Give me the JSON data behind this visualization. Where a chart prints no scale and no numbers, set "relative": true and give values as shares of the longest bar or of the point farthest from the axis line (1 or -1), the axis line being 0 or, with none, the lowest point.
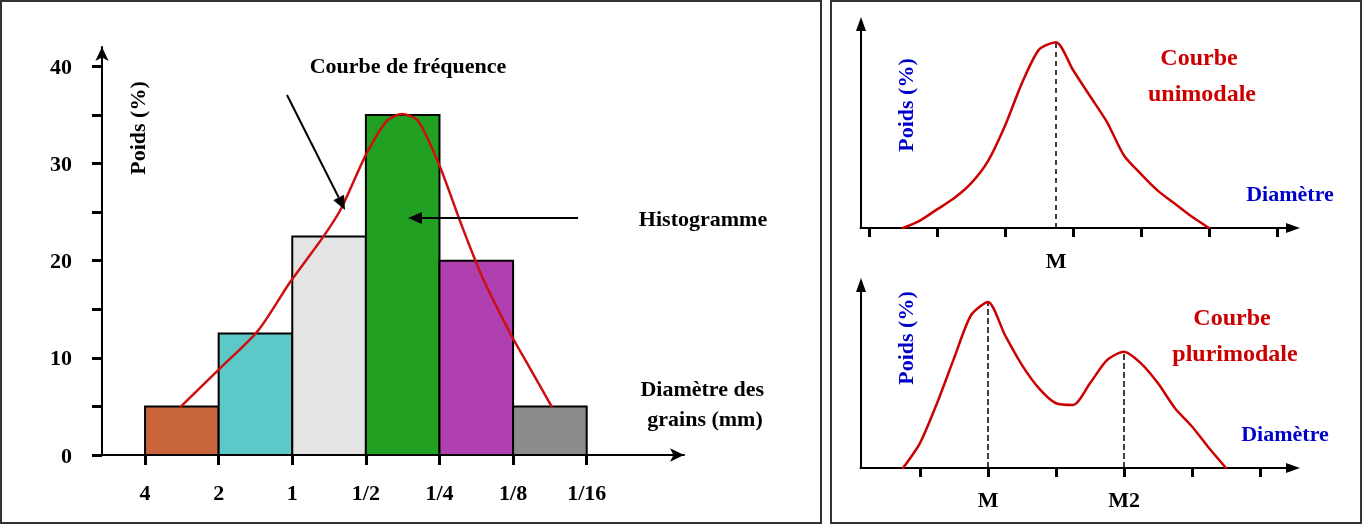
{
  "chart_data": [
    {
      "type": "histogram",
      "xlabel": "Diamètre des grains (mm)",
      "ylabel": "Poids (%)",
      "log": "x",
      "marker": "none",
      "xlim": [
        6,
        0.025
      ],
      "xticks": [
        4,
        2,
        1,
        {
          "value": 0.5,
          "label": "1/2"
        },
        {
          "value": 0.25,
          "label": "1/4"
        },
        {
          "value": 0.125,
          "label": "1/8"
        },
        {
          "value": 0.0625,
          "label": "1/16"
        }
      ],
      "ylim": [
        0,
        42
      ],
      "yticks": [
        0,
        {
          "value": 5,
          "label": null
        },
        10,
        {
          "value": 15,
          "label": null
        },
        20,
        {
          "value": 25,
          "label": null
        },
        30,
        {
          "value": 35,
          "label": null
        },
        40
      ],
      "series": [
        {
          "type": "histogram",
          "bins": [
            4,
            2,
            1,
            0.5,
            0.25,
            0.125,
            0.0625
          ],
          "values": [
            5,
            12.5,
            22.5,
            35,
            20,
            5
          ],
          "colors": [
            "#c8643c",
            "#5cc8c8",
            "#e4e4e4",
            "#22a022",
            "#b040b0",
            "#8c8c8c"
          ]
        },
        {
          "type": "line",
          "color": "#d01010",
          "x": [
            2.85,
            1.96,
            1.38,
            1.02,
            0.75,
            0.63,
            0.5,
            0.41,
            0.356,
            0.306,
            0.25,
            0.204,
            0.167,
            0.127,
            0.107,
            0.087
          ],
          "values": [
            5,
            9,
            12.8,
            17.8,
            22.4,
            25.4,
            30.9,
            34.4,
            35.1,
            34.4,
            29.8,
            23.8,
            18.3,
            12.3,
            9,
            5
          ]
        }
      ],
      "annotations": [
        "Courbe de fréquence",
        "Histogramme"
      ]
    },
    {
      "type": "line",
      "relative": true,
      "xlabel": "Diamètre",
      "ylabel": "Poids (%)",
      "marker": "none",
      "categories": [
        null,
        null,
        null,
        null,
        null,
        null,
        null,
        null,
        null,
        null,
        null,
        null,
        null,
        null,
        null,
        null,
        null,
        null,
        null,
        null,
        null,
        null,
        null,
        null,
        null
      ],
      "series": [
        {
          "name": "Courbe unimodale",
          "color": "#cc0000",
          "values": [
            null,
            null,
            0,
            0.04,
            0.1,
            0.16,
            0.24,
            0.36,
            0.55,
            0.78,
            0.96,
            1,
            0.85,
            0.71,
            0.57,
            0.39,
            0.29,
            0.2,
            0.13,
            0.06,
            0,
            null,
            null,
            null,
            null
          ]
        }
      ],
      "annotations": [
        "M"
      ]
    },
    {
      "type": "line",
      "relative": true,
      "xlabel": "Diamètre",
      "ylabel": "Poids (%)",
      "marker": "none",
      "categories": [
        null,
        null,
        null,
        null,
        null,
        null,
        null,
        "M",
        null,
        null,
        null,
        null,
        null,
        null,
        null,
        "M2",
        null,
        null,
        null,
        null,
        null,
        null,
        null,
        null,
        null
      ],
      "series": [
        {
          "name": "Courbe plurimodale",
          "color": "#cc0000",
          "values": [
            null,
            null,
            0,
            0.15,
            0.39,
            0.66,
            0.92,
            1,
            0.8,
            0.62,
            0.48,
            0.39,
            0.38,
            0.51,
            0.65,
            0.7,
            0.63,
            0.51,
            0.36,
            0.25,
            0.12,
            0,
            null,
            null,
            null
          ]
        }
      ],
      "ref_lines": [
        {
          "axis": "x",
          "value": "M",
          "line_style": "dashed"
        },
        {
          "axis": "x",
          "value": "M2",
          "line_style": "dashed"
        }
      ]
    }
  ]
}
